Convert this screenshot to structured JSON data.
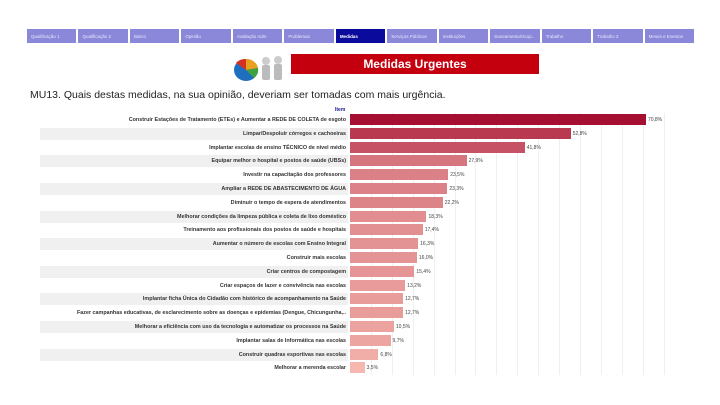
{
  "tabs": [
    "Qualificação 1",
    "Qualificação 2",
    "Bairro",
    "Opinião",
    "Avaliação Adm",
    "Problemas",
    "Medidas",
    "Serviços Públicos",
    "Instituições",
    "Saneamento/Ocup..",
    "Trabalho",
    "Trabalho 2",
    "Meses e Eventos"
  ],
  "active_tab": "Medidas",
  "banner": "Medidas Urgentes",
  "question": "MU13. Quais destas medidas, na sua opinião, deveriam ser tomadas com mais urgência.",
  "chart_data": {
    "type": "bar",
    "orientation": "horizontal",
    "ylabel": "Item",
    "categories": [
      "Construir Estações de Tratamento (ETEs) e Aumentar a REDE DE COLETA de esgoto",
      "Limpar/Despoluir córregos e cachoeiras",
      "Implantar escolas de ensino TÉCNICO de nível médio",
      "Equipar melhor o hospital e postos de saúde (UBSs)",
      "Investir na capacitação dos professores",
      "Ampliar a REDE DE ABASTECIMENTO DE ÁGUA",
      "Diminuir o tempo de espera de atendimentos",
      "Melhorar condições da limpeza pública e coleta de lixo doméstico",
      "Treinamento aos profissionais dos postos de saúde e hospitais",
      "Aumentar o número de escolas com Ensino Integral",
      "Construir mais escolas",
      "Criar centros de compostagem",
      "Criar espaços de lazer e convivência nas escolas",
      "Implantar ficha Única do Cidadão com histórico de acompanhamento na Saúde",
      "Fazer campanhas educativas, de esclarecimento sobre as doenças e epidemias (Dengue, Chicungunha,..",
      "Melhorar a eficiência com uso da tecnologia e automatizar os processos na Saúde",
      "Implantar salas de Informática nas escolas",
      "Construir quadras esportivas nas escolas",
      "Melhorar a merenda escolar"
    ],
    "values": [
      70.8,
      52.8,
      41.8,
      27.9,
      23.5,
      23.3,
      22.2,
      18.3,
      17.4,
      16.3,
      16.0,
      15.4,
      13.2,
      12.7,
      12.7,
      10.5,
      9.7,
      6.8,
      3.5
    ],
    "labels": [
      "70,8%",
      "52,8%",
      "41,8%",
      "27,9%",
      "23,5%",
      "23,3%",
      "22,2%",
      "18,3%",
      "17,4%",
      "16,3%",
      "16,0%",
      "15,4%",
      "13,2%",
      "12,7%",
      "12,7%",
      "10,5%",
      "9,7%",
      "6,8%",
      "3,5%"
    ],
    "xlim": [
      0,
      75
    ],
    "color_high": "#a50f32",
    "color_low": "#fbc3b8"
  }
}
